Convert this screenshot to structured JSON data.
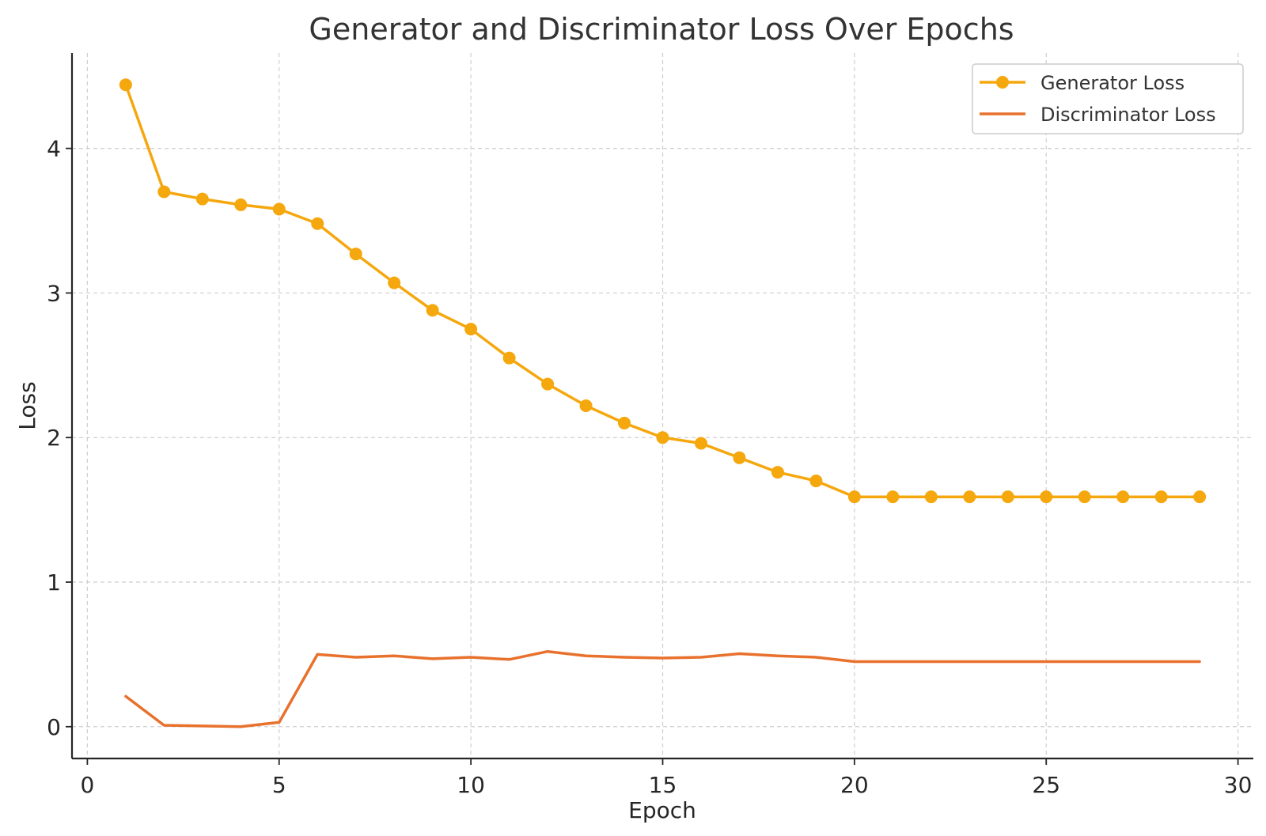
{
  "chart_data": {
    "type": "line",
    "title": "Generator and Discriminator Loss Over Epochs",
    "xlabel": "Epoch",
    "ylabel": "Loss",
    "xlim": [
      -0.4,
      30.4
    ],
    "ylim": [
      -0.22,
      4.66
    ],
    "x_ticks": [
      0,
      5,
      10,
      15,
      20,
      25,
      30
    ],
    "y_ticks": [
      0,
      1,
      2,
      3,
      4
    ],
    "grid": true,
    "legend_position": "top-right",
    "x": [
      1,
      2,
      3,
      4,
      5,
      6,
      7,
      8,
      9,
      10,
      11,
      12,
      13,
      14,
      15,
      16,
      17,
      18,
      19,
      20,
      21,
      22,
      23,
      24,
      25,
      26,
      27,
      28,
      29
    ],
    "series": [
      {
        "name": "Generator Loss",
        "color": "#F5A70E",
        "marker": "circle",
        "values": [
          4.44,
          3.7,
          3.65,
          3.61,
          3.58,
          3.48,
          3.27,
          3.07,
          2.88,
          2.75,
          2.55,
          2.37,
          2.22,
          2.1,
          2.0,
          1.96,
          1.86,
          1.76,
          1.7,
          1.59,
          1.59,
          1.59,
          1.59,
          1.59,
          1.59,
          1.59,
          1.59,
          1.59,
          1.59
        ]
      },
      {
        "name": "Discriminator Loss",
        "color": "#E8712D",
        "marker": "none",
        "values": [
          0.21,
          0.01,
          0.005,
          0.0,
          0.03,
          0.5,
          0.48,
          0.49,
          0.47,
          0.48,
          0.465,
          0.52,
          0.49,
          0.48,
          0.475,
          0.48,
          0.505,
          0.49,
          0.48,
          0.45,
          0.45,
          0.45,
          0.45,
          0.45,
          0.45,
          0.45,
          0.45,
          0.45,
          0.45
        ]
      }
    ]
  }
}
